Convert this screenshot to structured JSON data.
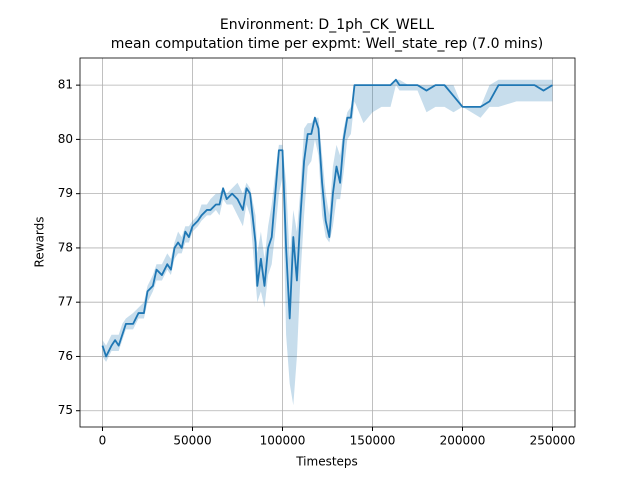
{
  "chart_data": {
    "type": "line",
    "title": "Environment: D_1ph_CK_WELL",
    "subtitle": "mean computation time per expmt: Well_state_rep (7.0 mins)",
    "x_label": "Timesteps",
    "y_label": "Rewards",
    "xlim": [
      -12500,
      262500
    ],
    "ylim": [
      74.7,
      81.5
    ],
    "xticks": [
      0,
      50000,
      100000,
      150000,
      200000,
      250000
    ],
    "yticks": [
      75,
      76,
      77,
      78,
      79,
      80,
      81
    ],
    "grid": true,
    "x": [
      0,
      2000,
      5000,
      7000,
      9000,
      11000,
      13000,
      17000,
      20000,
      23000,
      25000,
      28000,
      30000,
      33000,
      36000,
      38000,
      40000,
      42000,
      44000,
      46000,
      48000,
      50000,
      53000,
      55000,
      58000,
      60000,
      63000,
      65000,
      67000,
      69000,
      72000,
      75000,
      78000,
      80000,
      82000,
      85000,
      86000,
      88000,
      90000,
      92000,
      94000,
      96000,
      98000,
      100000,
      102000,
      104000,
      106000,
      108000,
      110000,
      112000,
      114000,
      116000,
      118000,
      120000,
      122000,
      124000,
      126000,
      128000,
      130000,
      132000,
      134000,
      136000,
      138000,
      140000,
      145000,
      150000,
      155000,
      160000,
      163000,
      165000,
      170000,
      175000,
      180000,
      185000,
      190000,
      195000,
      200000,
      210000,
      215000,
      220000,
      230000,
      240000,
      245000,
      250000
    ],
    "series": [
      {
        "color": "#1f77b4",
        "values": [
          76.2,
          76.0,
          76.2,
          76.3,
          76.2,
          76.4,
          76.6,
          76.6,
          76.8,
          76.8,
          77.2,
          77.3,
          77.6,
          77.5,
          77.7,
          77.6,
          78.0,
          78.1,
          78.0,
          78.3,
          78.2,
          78.4,
          78.5,
          78.6,
          78.7,
          78.7,
          78.8,
          78.8,
          79.1,
          78.9,
          79.0,
          78.9,
          78.7,
          79.1,
          79.0,
          78.1,
          77.3,
          77.8,
          77.3,
          78.0,
          78.2,
          79.0,
          79.8,
          79.8,
          78.0,
          76.7,
          78.2,
          77.4,
          78.6,
          79.6,
          80.1,
          80.1,
          80.4,
          80.2,
          79.2,
          78.5,
          78.2,
          79.0,
          79.5,
          79.2,
          80.0,
          80.4,
          80.4,
          81.0,
          81.0,
          81.0,
          81.0,
          81.0,
          81.1,
          81.0,
          81.0,
          81.0,
          80.9,
          81.0,
          81.0,
          80.8,
          80.6,
          80.6,
          80.7,
          81.0,
          81.0,
          81.0,
          80.9,
          81.0
        ],
        "lower": [
          76.0,
          75.9,
          76.1,
          76.1,
          76.1,
          76.3,
          76.5,
          76.5,
          76.7,
          76.7,
          77.0,
          77.2,
          77.4,
          77.4,
          77.6,
          77.5,
          77.8,
          77.9,
          77.9,
          78.1,
          78.1,
          78.3,
          78.4,
          78.5,
          78.6,
          78.6,
          78.7,
          78.6,
          78.9,
          78.8,
          78.8,
          78.6,
          78.4,
          78.8,
          78.6,
          77.4,
          77.0,
          77.2,
          76.9,
          77.5,
          77.7,
          78.3,
          79.0,
          79.3,
          76.4,
          75.5,
          75.1,
          76.0,
          77.5,
          78.6,
          79.5,
          79.6,
          80.0,
          79.7,
          78.6,
          78.2,
          78.1,
          78.4,
          78.9,
          78.9,
          79.4,
          80.0,
          80.1,
          80.7,
          80.3,
          80.5,
          80.6,
          80.6,
          81.0,
          80.9,
          80.9,
          80.9,
          80.5,
          80.6,
          80.6,
          80.5,
          80.6,
          80.4,
          80.6,
          80.6,
          80.7,
          80.7,
          80.7,
          80.7
        ],
        "upper": [
          76.3,
          76.2,
          76.4,
          76.4,
          76.4,
          76.6,
          76.7,
          76.8,
          76.9,
          77.0,
          77.3,
          77.5,
          77.7,
          77.7,
          77.9,
          77.8,
          78.1,
          78.3,
          78.2,
          78.4,
          78.4,
          78.5,
          78.6,
          78.8,
          78.8,
          78.9,
          79.0,
          79.0,
          79.1,
          79.0,
          79.1,
          79.2,
          79.0,
          79.2,
          79.1,
          78.6,
          77.9,
          78.3,
          77.8,
          78.4,
          78.8,
          79.4,
          79.9,
          79.9,
          79.2,
          77.8,
          78.7,
          78.3,
          79.1,
          80.2,
          80.3,
          80.3,
          80.4,
          80.4,
          79.7,
          79.0,
          78.6,
          79.5,
          79.9,
          79.7,
          80.2,
          80.5,
          80.6,
          81.0,
          81.0,
          81.0,
          81.0,
          81.0,
          81.1,
          81.1,
          81.0,
          81.0,
          81.0,
          81.0,
          81.0,
          81.0,
          80.6,
          80.6,
          81.0,
          81.1,
          81.1,
          81.1,
          81.1,
          81.1
        ]
      }
    ]
  }
}
